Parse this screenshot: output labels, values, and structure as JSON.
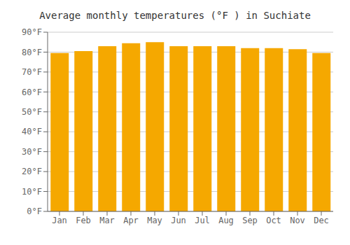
{
  "chart_data": {
    "type": "bar",
    "title": "Average monthly temperatures (°F ) in Suchiate",
    "categories": [
      "Jan",
      "Feb",
      "Mar",
      "Apr",
      "May",
      "Jun",
      "Jul",
      "Aug",
      "Sep",
      "Oct",
      "Nov",
      "Dec"
    ],
    "values": [
      79.5,
      80.5,
      83.0,
      84.5,
      85.0,
      83.0,
      83.0,
      83.0,
      82.0,
      82.0,
      81.5,
      79.5
    ],
    "color": "#F5A800",
    "ylim": [
      0,
      90
    ],
    "yticks": [
      {
        "value": 0,
        "label": "0°F"
      },
      {
        "value": 10,
        "label": "10°F"
      },
      {
        "value": 20,
        "label": "20°F"
      },
      {
        "value": 30,
        "label": "30°F"
      },
      {
        "value": 40,
        "label": "40°F"
      },
      {
        "value": 50,
        "label": "50°F"
      },
      {
        "value": 60,
        "label": "60°F"
      },
      {
        "value": 70,
        "label": "70°F"
      },
      {
        "value": 80,
        "label": "80°F"
      },
      {
        "value": 90,
        "label": "90°F"
      }
    ],
    "grid": true
  }
}
